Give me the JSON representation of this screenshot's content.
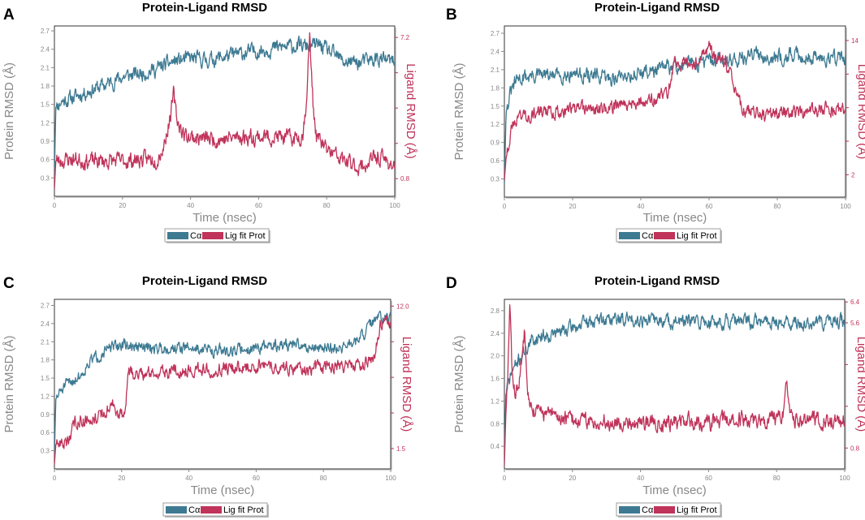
{
  "colors": {
    "protein": "#3d7a92",
    "ligand": "#c0335a",
    "tick": "#888888",
    "frame": "#333333"
  },
  "chart_data": [
    {
      "type": "line",
      "panel_label": "A",
      "title": "Protein-Ligand RMSD",
      "xlabel": "Time (nsec)",
      "ylabel": "Protein RMSD (Å)",
      "y2label": "Ligand RMSD (Å)",
      "xlim": [
        0,
        100
      ],
      "x_ticks": [
        0,
        20,
        40,
        60,
        80,
        100
      ],
      "ylim": [
        0,
        2.78
      ],
      "y_ticks": [
        0.3,
        0.6,
        0.9,
        1.2,
        1.5,
        1.8,
        2.1,
        2.4,
        2.7
      ],
      "y2lim": [
        0,
        7.72
      ],
      "y2_ticks": [
        0.8,
        2.4,
        4.0,
        5.6,
        7.2
      ],
      "y2_tick_labels": [
        "0.8",
        "",
        "",
        "",
        "7.2"
      ],
      "legend": [
        "Cα",
        "Lig fit Prot"
      ],
      "series": [
        {
          "name": "Cα",
          "axis": "left",
          "seed": 11,
          "noise": 0.1,
          "x": [
            0,
            0.4,
            2,
            5,
            10,
            15,
            20,
            25,
            30,
            35,
            40,
            45,
            50,
            55,
            60,
            65,
            70,
            75,
            78,
            80,
            85,
            90,
            95,
            100
          ],
          "y": [
            0.3,
            1.45,
            1.55,
            1.6,
            1.72,
            1.82,
            1.95,
            2.0,
            2.08,
            2.2,
            2.25,
            2.22,
            2.28,
            2.33,
            2.38,
            2.42,
            2.45,
            2.45,
            2.47,
            2.38,
            2.2,
            2.18,
            2.25,
            2.18
          ]
        },
        {
          "name": "Lig fit Prot",
          "axis": "right",
          "seed": 23,
          "noise": 0.3,
          "x": [
            0,
            0.4,
            5,
            10,
            20,
            30,
            32,
            34,
            35,
            36,
            38,
            40,
            45,
            50,
            55,
            60,
            65,
            70,
            73,
            74,
            75,
            76,
            77,
            80,
            85,
            90,
            95,
            100
          ],
          "y": [
            0.3,
            1.6,
            1.7,
            1.6,
            1.6,
            1.7,
            2.2,
            3.6,
            4.6,
            3.5,
            2.8,
            2.7,
            2.6,
            2.6,
            2.7,
            2.7,
            2.7,
            2.6,
            2.8,
            4.3,
            7.3,
            4.2,
            2.7,
            2.1,
            1.6,
            1.3,
            1.8,
            1.4
          ]
        }
      ]
    },
    {
      "type": "line",
      "panel_label": "B",
      "title": "Protein-Ligand RMSD",
      "xlabel": "Time (nsec)",
      "ylabel": "Protein RMSD (Å)",
      "y2label": "Ligand RMSD (Å)",
      "xlim": [
        0,
        100
      ],
      "x_ticks": [
        0,
        20,
        40,
        60,
        80,
        100
      ],
      "ylim": [
        0,
        2.82
      ],
      "y_ticks": [
        0.3,
        0.6,
        0.9,
        1.2,
        1.5,
        1.8,
        2.1,
        2.4,
        2.7
      ],
      "y2lim": [
        0,
        15.3
      ],
      "y2_ticks": [
        2,
        5,
        8,
        11,
        14
      ],
      "y2_tick_labels": [
        "2",
        "",
        "",
        "",
        "14"
      ],
      "legend": [
        "Cα",
        "Lig fit Prot"
      ],
      "series": [
        {
          "name": "Cα",
          "axis": "left",
          "seed": 31,
          "noise": 0.1,
          "x": [
            0,
            0.5,
            2,
            4,
            8,
            15,
            20,
            25,
            30,
            35,
            40,
            45,
            50,
            55,
            60,
            65,
            70,
            75,
            80,
            85,
            90,
            95,
            100
          ],
          "y": [
            0.2,
            1.4,
            1.75,
            1.95,
            2.0,
            2.0,
            2.05,
            2.0,
            1.95,
            2.0,
            2.05,
            2.1,
            2.15,
            2.2,
            2.25,
            2.25,
            2.3,
            2.35,
            2.3,
            2.35,
            2.3,
            2.3,
            2.3
          ]
        },
        {
          "name": "Lig fit Prot",
          "axis": "right",
          "seed": 43,
          "noise": 0.5,
          "x": [
            0,
            0.5,
            2,
            4,
            10,
            20,
            30,
            35,
            40,
            45,
            48,
            50,
            55,
            58,
            60,
            62,
            65,
            68,
            70,
            75,
            80,
            85,
            90,
            95,
            100
          ],
          "y": [
            1.5,
            3.5,
            6.0,
            7.3,
            7.5,
            7.8,
            7.9,
            8.4,
            8.5,
            8.8,
            9.5,
            12.0,
            11.6,
            12.8,
            13.4,
            12.5,
            11.8,
            9.2,
            7.8,
            7.4,
            7.5,
            7.6,
            7.8,
            7.9,
            7.7
          ]
        }
      ]
    },
    {
      "type": "line",
      "panel_label": "C",
      "title": "Protein-Ligand RMSD",
      "xlabel": "Time (nsec)",
      "ylabel": "Protein RMSD (Å)",
      "y2label": "Ligand RMSD (Å)",
      "xlim": [
        0,
        100
      ],
      "x_ticks": [
        0,
        20,
        40,
        60,
        80,
        100
      ],
      "ylim": [
        0,
        2.8
      ],
      "y_ticks": [
        0.3,
        0.6,
        0.9,
        1.2,
        1.5,
        1.8,
        2.1,
        2.4,
        2.7
      ],
      "y2lim": [
        0,
        12.5
      ],
      "y2_ticks": [
        1.5,
        4.125,
        6.75,
        9.375,
        12.0
      ],
      "y2_tick_labels": [
        "1.5",
        "",
        "",
        "",
        "12.0"
      ],
      "legend": [
        "Cα",
        "Lig fit Prot"
      ],
      "series": [
        {
          "name": "Cα",
          "axis": "left",
          "seed": 51,
          "noise": 0.08,
          "x": [
            0,
            0.4,
            2,
            5,
            8,
            10,
            15,
            20,
            25,
            30,
            40,
            50,
            60,
            70,
            80,
            85,
            90,
            93,
            95,
            98,
            100
          ],
          "y": [
            0.2,
            1.15,
            1.3,
            1.45,
            1.55,
            1.75,
            1.95,
            2.05,
            2.0,
            2.0,
            2.0,
            1.95,
            2.0,
            2.05,
            2.0,
            2.0,
            2.1,
            2.3,
            2.45,
            2.5,
            2.45
          ]
        },
        {
          "name": "Lig fit Prot",
          "axis": "right",
          "seed": 63,
          "noise": 0.4,
          "x": [
            0,
            0.4,
            4,
            6,
            10,
            15,
            17,
            19,
            21,
            22,
            25,
            30,
            40,
            50,
            60,
            70,
            80,
            90,
            95,
            97,
            100
          ],
          "y": [
            0.3,
            1.8,
            2.0,
            3.5,
            3.7,
            4.0,
            5.0,
            3.8,
            4.2,
            7.0,
            7.0,
            7.1,
            7.3,
            7.4,
            7.6,
            7.5,
            7.5,
            7.7,
            8.0,
            11.0,
            10.5
          ]
        }
      ]
    },
    {
      "type": "line",
      "panel_label": "D",
      "title": "Protein-Ligand RMSD",
      "xlabel": "Time (nsec)",
      "ylabel": "Protein RMSD (Å)",
      "y2label": "Ligand RMSD (Å)",
      "xlim": [
        0,
        100
      ],
      "x_ticks": [
        0,
        20,
        40,
        60,
        80,
        100
      ],
      "ylim": [
        0,
        3.0
      ],
      "y_ticks": [
        0.4,
        0.8,
        1.2,
        1.6,
        2.0,
        2.4,
        2.8
      ],
      "y2lim": [
        0,
        6.5
      ],
      "y2_ticks": [
        0.8,
        2.4,
        4.0,
        5.6,
        6.4
      ],
      "y2_tick_labels": [
        "0.8",
        "",
        "",
        "5.6",
        "6.4"
      ],
      "legend": [
        "Cα",
        "Lig fit Prot"
      ],
      "series": [
        {
          "name": "Cα",
          "axis": "left",
          "seed": 71,
          "noise": 0.1,
          "x": [
            0,
            0.4,
            2,
            5,
            8,
            10,
            15,
            20,
            25,
            30,
            40,
            50,
            60,
            70,
            80,
            90,
            95,
            100
          ],
          "y": [
            0.2,
            1.3,
            1.7,
            2.0,
            2.25,
            2.35,
            2.4,
            2.5,
            2.6,
            2.65,
            2.65,
            2.6,
            2.6,
            2.6,
            2.6,
            2.55,
            2.6,
            2.6
          ]
        },
        {
          "name": "Lig fit Prot",
          "axis": "right",
          "seed": 83,
          "noise": 0.25,
          "x": [
            0,
            0.4,
            1,
            1.6,
            2.2,
            3,
            4,
            5,
            6,
            7,
            8,
            10,
            15,
            20,
            25,
            30,
            40,
            50,
            60,
            70,
            80,
            82,
            83,
            84,
            86,
            90,
            100
          ],
          "y": [
            0.1,
            2.0,
            3.5,
            6.4,
            3.8,
            3.0,
            3.0,
            4.0,
            5.4,
            3.0,
            2.3,
            2.2,
            2.0,
            1.9,
            1.8,
            1.8,
            1.8,
            1.8,
            1.8,
            1.9,
            1.9,
            2.0,
            3.2,
            2.0,
            1.9,
            1.9,
            1.8
          ]
        }
      ]
    }
  ]
}
